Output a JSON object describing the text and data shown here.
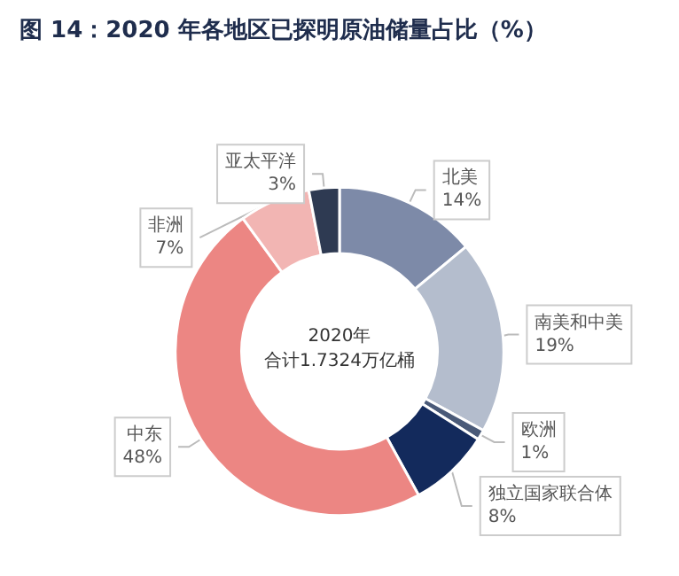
{
  "chart_data": {
    "type": "donut",
    "title": "图 14：2020 年各地区已探明原油储量占比（%）",
    "categories": [
      "北美",
      "南美和中美",
      "欧洲",
      "独立国家联合体",
      "中东",
      "非洲",
      "亚太平洋"
    ],
    "values": [
      14,
      19,
      1,
      8,
      48,
      7,
      3
    ],
    "value_labels": [
      "14%",
      "19%",
      "1%",
      "8%",
      "48%",
      "7%",
      "3%"
    ],
    "colors": [
      "#7d8aa8",
      "#b4bdcd",
      "#4a5a78",
      "#132a5c",
      "#ec8683",
      "#f2b5b3",
      "#2e3a52"
    ],
    "annotations": [
      "2020年",
      "合计1.7324万亿桶"
    ],
    "legend": false
  }
}
